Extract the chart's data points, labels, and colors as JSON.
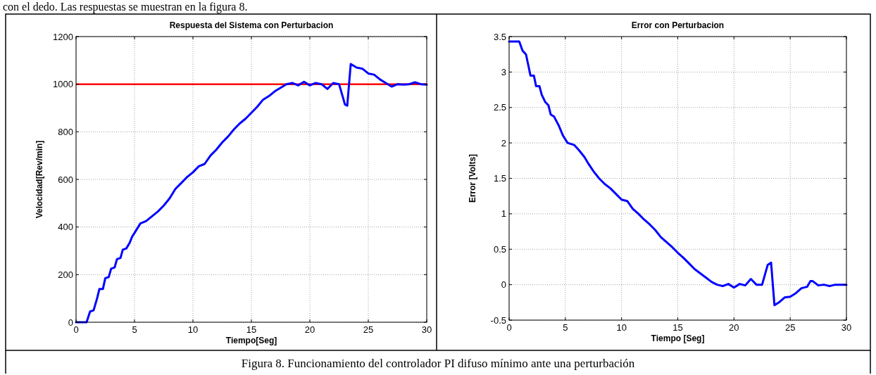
{
  "chart_data": [
    {
      "type": "line",
      "title": "Respuesta del Sistema con Perturbacion",
      "xlabel": "Tiempo[Seg]",
      "ylabel": "Velocidad[Rev/min]",
      "xlim": [
        0,
        30
      ],
      "ylim": [
        0,
        1200
      ],
      "xticks": [
        0,
        5,
        10,
        15,
        20,
        25,
        30
      ],
      "yticks": [
        0,
        200,
        400,
        600,
        800,
        1000,
        1200
      ],
      "grid": true,
      "annotations": [
        "con el dedo. Las respuestas se muestran en la figura 8.",
        "Figura 8. Funcionamiento del controlador PI difuso mínimo ante una perturbación"
      ],
      "ref_lines": [
        {
          "axis": "y",
          "value": 1000,
          "color": "#ff0000"
        }
      ],
      "series": [
        {
          "color": "#0000ff",
          "x": [
            0,
            0.9,
            1.2,
            1.5,
            1.8,
            2.0,
            2.3,
            2.5,
            2.8,
            3.0,
            3.3,
            3.5,
            3.8,
            4.0,
            4.3,
            4.6,
            4.8,
            5.0,
            5.5,
            6.0,
            6.5,
            7.0,
            7.5,
            8.0,
            8.5,
            9.0,
            9.5,
            10.0,
            10.5,
            11.0,
            11.5,
            12.0,
            12.5,
            13.0,
            13.5,
            14.0,
            14.5,
            15.0,
            15.5,
            16.0,
            16.5,
            17.0,
            17.5,
            18.0,
            18.5,
            19.0,
            19.5,
            20.0,
            20.5,
            21.0,
            21.5,
            22.0,
            22.5,
            22.8,
            23.0,
            23.2,
            23.5,
            24.0,
            24.5,
            25.0,
            25.5,
            26.0,
            26.5,
            27.0,
            27.5,
            28.0,
            28.5,
            29.0,
            29.5,
            30
          ],
          "values": [
            0,
            0,
            45,
            50,
            100,
            140,
            140,
            185,
            190,
            225,
            230,
            265,
            270,
            305,
            310,
            335,
            360,
            375,
            415,
            425,
            445,
            465,
            490,
            520,
            560,
            585,
            610,
            630,
            655,
            665,
            700,
            725,
            755,
            780,
            810,
            835,
            855,
            880,
            905,
            935,
            950,
            970,
            985,
            1000,
            1005,
            995,
            1010,
            995,
            1005,
            1000,
            980,
            1005,
            1000,
            950,
            915,
            910,
            1085,
            1070,
            1065,
            1045,
            1040,
            1020,
            1005,
            990,
            1000,
            998,
            1000,
            1008,
            1000,
            998
          ]
        }
      ]
    },
    {
      "type": "line",
      "title": "Error con Perturbacion",
      "xlabel": "Tiempo [Seg]",
      "ylabel": "Error [Volts]",
      "xlim": [
        0,
        30
      ],
      "ylim": [
        -0.5,
        3.5
      ],
      "xticks": [
        0,
        5,
        10,
        15,
        20,
        25,
        30
      ],
      "yticks": [
        -0.5,
        0,
        0.5,
        1,
        1.5,
        2,
        2.5,
        3,
        3.5
      ],
      "grid": true,
      "series": [
        {
          "color": "#0000ff",
          "x": [
            0,
            0.9,
            1.2,
            1.5,
            1.7,
            1.9,
            2.2,
            2.4,
            2.7,
            2.9,
            3.2,
            3.5,
            3.7,
            4.0,
            4.4,
            4.8,
            5.2,
            5.8,
            6.2,
            6.7,
            7.0,
            7.5,
            8.0,
            8.5,
            9.0,
            9.5,
            10.0,
            10.5,
            11.0,
            11.5,
            12.0,
            12.5,
            13.0,
            13.5,
            14.0,
            14.5,
            15.0,
            15.5,
            16.0,
            16.5,
            17.0,
            17.5,
            18.0,
            18.5,
            19.0,
            19.5,
            20.0,
            20.5,
            21.0,
            21.5,
            22.0,
            22.5,
            23.0,
            23.3,
            23.6,
            24.0,
            24.5,
            25.0,
            25.5,
            26.0,
            26.5,
            26.8,
            27.0,
            27.5,
            28.0,
            28.5,
            29.0,
            29.5,
            30
          ],
          "values": [
            3.43,
            3.43,
            3.3,
            3.25,
            3.1,
            2.95,
            2.95,
            2.8,
            2.8,
            2.68,
            2.58,
            2.53,
            2.4,
            2.37,
            2.25,
            2.1,
            2.0,
            1.97,
            1.9,
            1.8,
            1.72,
            1.6,
            1.5,
            1.42,
            1.36,
            1.28,
            1.2,
            1.18,
            1.07,
            1.0,
            0.92,
            0.85,
            0.77,
            0.67,
            0.6,
            0.53,
            0.45,
            0.38,
            0.3,
            0.22,
            0.16,
            0.1,
            0.04,
            0.0,
            -0.02,
            0.01,
            -0.04,
            0.01,
            -0.01,
            0.08,
            0.0,
            0.0,
            0.28,
            0.31,
            -0.29,
            -0.25,
            -0.18,
            -0.17,
            -0.12,
            -0.05,
            -0.03,
            0.05,
            0.05,
            -0.01,
            0.0,
            -0.02,
            0.0,
            0.0,
            0
          ]
        }
      ]
    }
  ]
}
